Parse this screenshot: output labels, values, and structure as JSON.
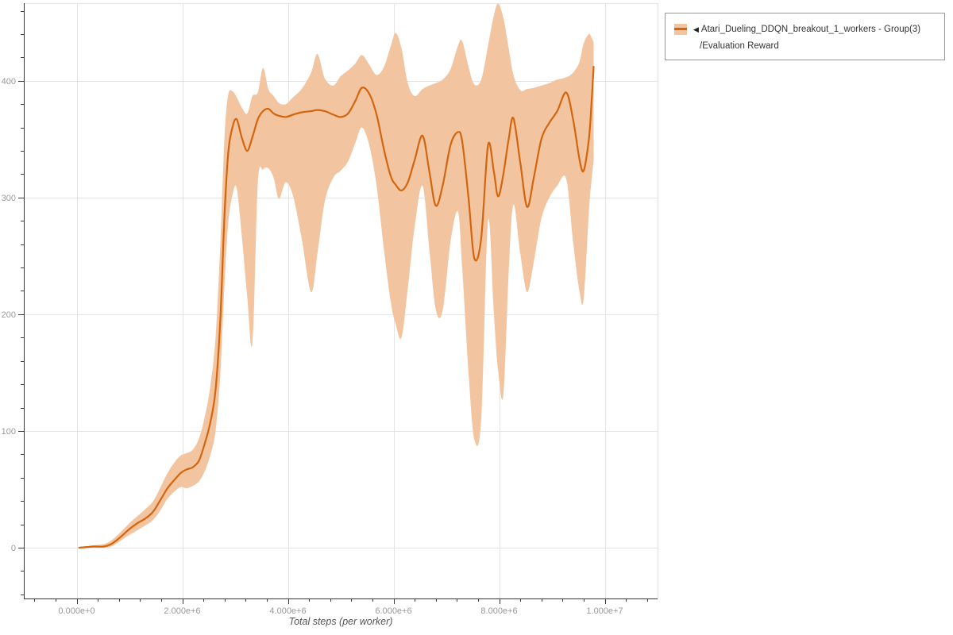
{
  "legend": {
    "collapse_icon": "◀",
    "entry_line1": "Atari_Dueling_DDQN_breakout_1_workers - Group(3)",
    "entry_line2": "/Evaluation Reward"
  },
  "chart_data": {
    "type": "line",
    "title": "",
    "xlabel": "Total steps (per worker)",
    "ylabel": "",
    "grid": true,
    "legend_position": "top-right-outside",
    "grid_color": "#e4e4e4",
    "axis_color": "#3a3a3c",
    "tick_label_color": "#999999",
    "x_axis": {
      "unit": "steps",
      "tick_labels": [
        "0.000e+0",
        "2.000e+6",
        "4.000e+6",
        "6.000e+6",
        "8.000e+6",
        "1.000e+7"
      ],
      "tick_values_millions": [
        0,
        2,
        4,
        6,
        8,
        10
      ],
      "minor_step_millions": 0.4,
      "range_millions": [
        -1.0,
        11.0
      ]
    },
    "y_axis": {
      "tick_labels": [
        "0",
        "100",
        "200",
        "300",
        "400"
      ],
      "tick_values": [
        0,
        100,
        200,
        300,
        400
      ],
      "minor_step": 20,
      "range": [
        -43.5,
        466.5
      ]
    },
    "series": [
      {
        "name": "Atari_Dueling_DDQN_breakout_1_workers - Group(3)/Evaluation Reward",
        "color": "#d4650f",
        "band_color": "#f2c5a0",
        "x_unit_note": "x in millions of steps; points = [x, mean, band_low, band_high]",
        "points": [
          [
            0.05,
            0,
            0,
            0
          ],
          [
            0.3,
            1,
            0,
            2
          ],
          [
            0.5,
            1,
            0,
            3
          ],
          [
            0.65,
            3,
            1,
            6
          ],
          [
            0.8,
            8,
            5,
            12
          ],
          [
            1.0,
            16,
            11,
            21
          ],
          [
            1.15,
            21,
            15,
            27
          ],
          [
            1.3,
            25,
            19,
            33
          ],
          [
            1.45,
            31,
            24,
            40
          ],
          [
            1.6,
            42,
            33,
            53
          ],
          [
            1.72,
            51,
            42,
            64
          ],
          [
            1.85,
            58,
            48,
            73
          ],
          [
            1.97,
            64,
            52,
            79
          ],
          [
            2.08,
            67,
            51,
            81
          ],
          [
            2.2,
            69,
            53,
            84
          ],
          [
            2.32,
            75,
            57,
            94
          ],
          [
            2.43,
            90,
            66,
            113
          ],
          [
            2.53,
            107,
            79,
            138
          ],
          [
            2.63,
            135,
            100,
            180
          ],
          [
            2.72,
            195,
            148,
            260
          ],
          [
            2.8,
            285,
            225,
            352
          ],
          [
            2.87,
            338,
            278,
            388
          ],
          [
            2.95,
            360,
            302,
            391
          ],
          [
            3.03,
            367,
            308,
            386
          ],
          [
            3.13,
            351,
            266,
            377
          ],
          [
            3.23,
            340,
            215,
            372
          ],
          [
            3.33,
            352,
            176,
            387
          ],
          [
            3.43,
            367,
            312,
            390
          ],
          [
            3.53,
            374,
            324,
            411
          ],
          [
            3.63,
            376,
            325,
            393
          ],
          [
            3.73,
            372,
            317,
            387
          ],
          [
            3.83,
            370,
            299,
            381
          ],
          [
            3.96,
            369,
            313,
            380
          ],
          [
            4.1,
            371,
            301,
            386
          ],
          [
            4.26,
            373,
            265,
            393
          ],
          [
            4.44,
            374,
            219,
            407
          ],
          [
            4.56,
            375,
            252,
            423
          ],
          [
            4.7,
            374,
            297,
            402
          ],
          [
            4.86,
            371,
            317,
            396
          ],
          [
            5.0,
            369,
            323,
            404
          ],
          [
            5.14,
            372,
            331,
            409
          ],
          [
            5.28,
            383,
            347,
            415
          ],
          [
            5.4,
            394,
            360,
            422
          ],
          [
            5.54,
            389,
            345,
            414
          ],
          [
            5.68,
            371,
            310,
            405
          ],
          [
            5.82,
            341,
            255,
            412
          ],
          [
            5.95,
            318,
            210,
            430
          ],
          [
            6.04,
            311,
            192,
            441
          ],
          [
            6.15,
            306,
            180,
            428
          ],
          [
            6.27,
            313,
            222,
            398
          ],
          [
            6.4,
            332,
            275,
            387
          ],
          [
            6.55,
            353,
            310,
            393
          ],
          [
            6.68,
            322,
            255,
            396
          ],
          [
            6.8,
            293,
            204,
            398
          ],
          [
            6.93,
            310,
            203,
            401
          ],
          [
            7.08,
            345,
            262,
            410
          ],
          [
            7.22,
            356,
            288,
            430
          ],
          [
            7.3,
            348,
            240,
            434
          ],
          [
            7.42,
            300,
            150,
            412
          ],
          [
            7.53,
            248,
            93,
            397
          ],
          [
            7.66,
            265,
            110,
            401
          ],
          [
            7.79,
            345,
            280,
            430
          ],
          [
            7.9,
            322,
            200,
            456
          ],
          [
            7.98,
            301,
            152,
            466
          ],
          [
            8.08,
            320,
            131,
            454
          ],
          [
            8.18,
            350,
            235,
            428
          ],
          [
            8.27,
            368,
            294,
            405
          ],
          [
            8.4,
            330,
            252,
            392
          ],
          [
            8.53,
            292,
            219,
            393
          ],
          [
            8.66,
            318,
            246,
            394
          ],
          [
            8.8,
            350,
            282,
            396
          ],
          [
            8.95,
            364,
            300,
            398
          ],
          [
            9.1,
            374,
            310,
            401
          ],
          [
            9.27,
            390,
            316,
            403
          ],
          [
            9.4,
            367,
            262,
            407
          ],
          [
            9.52,
            333,
            220,
            416
          ],
          [
            9.6,
            323,
            213,
            432
          ],
          [
            9.7,
            350,
            288,
            440
          ],
          [
            9.75,
            382,
            315,
            437
          ],
          [
            9.79,
            412,
            332,
            433
          ]
        ]
      }
    ]
  }
}
